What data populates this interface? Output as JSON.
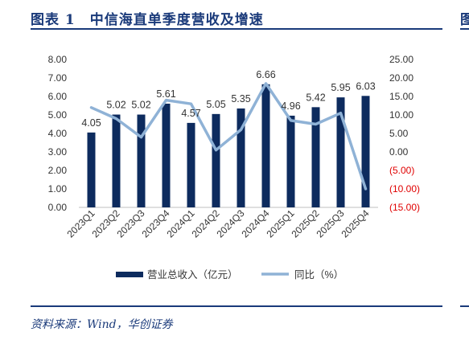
{
  "header": {
    "title": "图表 1　中信海直单季度营收及增速",
    "edge_glyph": "图"
  },
  "footer": {
    "source": "资料来源：Wind，华创证券"
  },
  "colors": {
    "bar": "#0d2b5e",
    "line": "#8fb2d6",
    "negative": "#e00000",
    "text": "#333333",
    "heading": "#1a3a7a"
  },
  "chart_data": {
    "type": "bar",
    "categories": [
      "2023Q1",
      "2023Q2",
      "2023Q3",
      "2023Q4",
      "2024Q1",
      "2024Q2",
      "2024Q3",
      "2024Q4",
      "2025Q1",
      "2025Q2",
      "2025Q3",
      "2025Q4"
    ],
    "series": [
      {
        "name": "营业总收入（亿元）",
        "type": "bar",
        "axis": "left",
        "values": [
          4.05,
          5.02,
          5.02,
          5.61,
          4.57,
          5.05,
          5.35,
          6.66,
          4.96,
          5.42,
          5.95,
          6.03
        ],
        "labels": [
          "4.05",
          "5.02",
          "5.02",
          "5.61",
          "4.57",
          "5.05",
          "5.35",
          "6.66",
          "4.96",
          "5.42",
          "5.95",
          "6.03"
        ]
      },
      {
        "name": "同比（%）",
        "type": "line",
        "axis": "right",
        "values": [
          12.0,
          9.0,
          4.0,
          14.0,
          13.0,
          0.5,
          6.0,
          18.5,
          8.5,
          7.5,
          10.5,
          -10.0
        ]
      }
    ],
    "y_left": {
      "min": 0,
      "max": 8,
      "ticks": [
        "0.00",
        "1.00",
        "2.00",
        "3.00",
        "4.00",
        "5.00",
        "6.00",
        "7.00",
        "8.00"
      ]
    },
    "y_right": {
      "min": -15,
      "max": 25,
      "ticks": [
        "(15.00)",
        "(10.00)",
        "(5.00)",
        "0.00",
        "5.00",
        "10.00",
        "15.00",
        "20.00",
        "25.00"
      ]
    },
    "legend_position": "bottom",
    "grid": false
  }
}
